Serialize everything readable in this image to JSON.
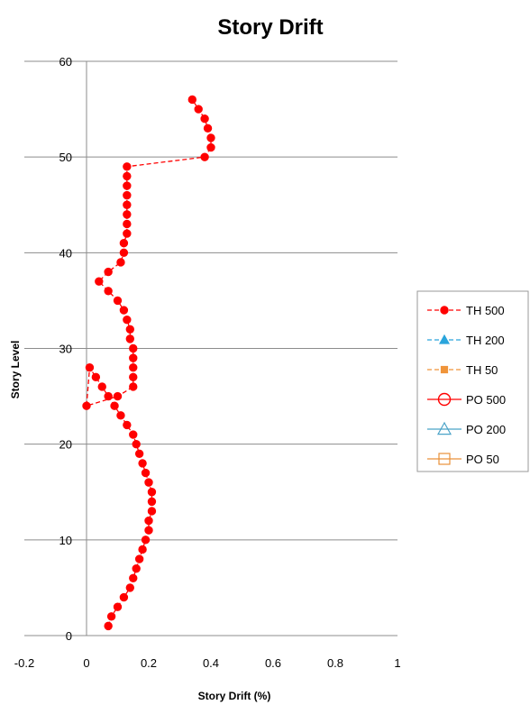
{
  "chart_data": {
    "type": "scatter",
    "title": "Story Drift",
    "xlabel": "Story Drift (%)",
    "ylabel": "Story Level",
    "xlim": [
      -0.2,
      1
    ],
    "ylim": [
      0,
      60
    ],
    "xticks": [
      "-0.2",
      "0",
      "0.2",
      "0.4",
      "0.6",
      "0.8",
      "1"
    ],
    "yticks": [
      "0",
      "10",
      "20",
      "30",
      "40",
      "50",
      "60"
    ],
    "grid": "horizontal",
    "legend_position": "right",
    "series": [
      {
        "name": "TH 500",
        "color": "#ff0000",
        "line": "dashed",
        "marker": "filled-circle",
        "x": [
          0.07,
          0.08,
          0.1,
          0.12,
          0.14,
          0.15,
          0.16,
          0.17,
          0.18,
          0.19,
          0.2,
          0.2,
          0.21,
          0.21,
          0.21,
          0.2,
          0.19,
          0.18,
          0.17,
          0.16,
          0.15,
          0.13,
          0.11,
          0.09,
          0.07,
          0.05,
          0.03,
          0.01,
          0,
          0.1,
          0.15,
          0.15,
          0.15,
          0.15,
          0.15,
          0.14,
          0.14,
          0.13,
          0.12,
          0.1,
          0.07,
          0.04,
          0.07,
          0.11,
          0.12,
          0.12,
          0.13,
          0.13,
          0.13,
          0.13,
          0.13,
          0.13,
          0.13,
          0.13,
          0.38,
          0.4,
          0.4,
          0.39,
          0.38,
          0.36,
          0.34
        ],
        "y": [
          1,
          2,
          3,
          4,
          5,
          6,
          7,
          8,
          9,
          10,
          11,
          12,
          13,
          14,
          15,
          16,
          17,
          18,
          19,
          20,
          21,
          22,
          23,
          24,
          25,
          26,
          27,
          28,
          24,
          25,
          26,
          27,
          28,
          29,
          30,
          31,
          32,
          33,
          34,
          35,
          36,
          37,
          38,
          39,
          40,
          41,
          42,
          43,
          44,
          45,
          46,
          47,
          48,
          49,
          50,
          51,
          52,
          53,
          54,
          55,
          56
        ]
      }
    ]
  },
  "legend": {
    "items": [
      {
        "label": "TH 500",
        "color": "#ff0000",
        "line": "dashed",
        "marker": "filled-circle"
      },
      {
        "label": "TH 200",
        "color": "#2aa5dc",
        "line": "dashed",
        "marker": "filled-triangle"
      },
      {
        "label": "TH 50",
        "color": "#f0943a",
        "line": "dashed",
        "marker": "filled-square"
      },
      {
        "label": "PO 500",
        "color": "#ff0000",
        "line": "solid",
        "marker": "open-circle"
      },
      {
        "label": "PO 200",
        "color": "#4ba3c8",
        "line": "solid",
        "marker": "open-triangle"
      },
      {
        "label": "PO 50",
        "color": "#e9913a",
        "line": "solid",
        "marker": "open-square"
      }
    ]
  }
}
